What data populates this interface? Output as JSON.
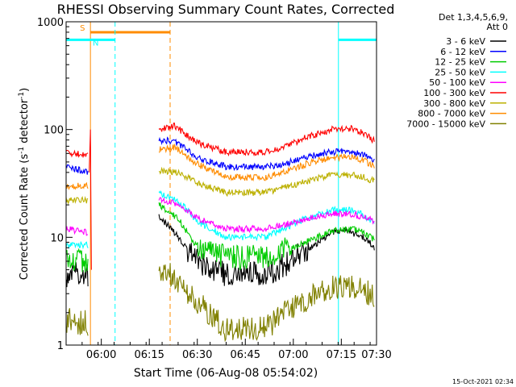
{
  "chart_data": {
    "type": "line",
    "title": "RHESSI Observing Summary Count Rates, Corrected",
    "xlabel": "Start Time (06-Aug-08 05:54:02)",
    "ylabel_main": "Corrected Count Rate (s",
    "ylabel_sup1": "-1",
    "ylabel_mid": " detector",
    "ylabel_sup2": "-1",
    "ylabel_end": ")",
    "y_scale": "log",
    "ylim": [
      1,
      1000
    ],
    "xlim_minutes": [
      -5,
      92
    ],
    "x_ticks": [
      {
        "m": 6,
        "label": "06:00"
      },
      {
        "m": 21,
        "label": "06:15"
      },
      {
        "m": 36,
        "label": "06:30"
      },
      {
        "m": 51,
        "label": "06:45"
      },
      {
        "m": 66,
        "label": "07:00"
      },
      {
        "m": 81,
        "label": "07:15"
      },
      {
        "m": 96,
        "label": "07:30"
      }
    ],
    "y_ticks": [
      {
        "v": 1,
        "label": "1"
      },
      {
        "v": 10,
        "label": "10"
      },
      {
        "v": 100,
        "label": "100"
      },
      {
        "v": 1000,
        "label": "1000"
      }
    ],
    "legend_header": [
      "Det 1,3,4,5,6,9,",
      "Att 0"
    ],
    "legend_placement": "right",
    "series": [
      {
        "name": "3 - 6 keV",
        "color": "#000000",
        "points": [
          [
            -5,
            4.5
          ],
          [
            2,
            4.5
          ],
          [
            23.5,
            null
          ],
          [
            24,
            16
          ],
          [
            30,
            10
          ],
          [
            36,
            6
          ],
          [
            45,
            4.5
          ],
          [
            57,
            4.5
          ],
          [
            63,
            5.5
          ],
          [
            70,
            7.5
          ],
          [
            78,
            11
          ],
          [
            82,
            11.5
          ],
          [
            88,
            10
          ],
          [
            91.5,
            8
          ]
        ]
      },
      {
        "name": "6 - 12 keV",
        "color": "#0000ff",
        "points": [
          [
            -5,
            45
          ],
          [
            2,
            40
          ],
          [
            23.5,
            null
          ],
          [
            24,
            80
          ],
          [
            29,
            78
          ],
          [
            36,
            55
          ],
          [
            45,
            45
          ],
          [
            57,
            45
          ],
          [
            63,
            48
          ],
          [
            70,
            55
          ],
          [
            78,
            62
          ],
          [
            84,
            62
          ],
          [
            88,
            58
          ],
          [
            91.5,
            52
          ]
        ]
      },
      {
        "name": "12 - 25 keV",
        "color": "#00cc00",
        "points": [
          [
            -5,
            6.5
          ],
          [
            2,
            6
          ],
          [
            23.5,
            null
          ],
          [
            24,
            20
          ],
          [
            30,
            15
          ],
          [
            36,
            8
          ],
          [
            45,
            6.5
          ],
          [
            57,
            6.5
          ],
          [
            63,
            7.5
          ],
          [
            70,
            9
          ],
          [
            78,
            11.5
          ],
          [
            84,
            12
          ],
          [
            88,
            11
          ],
          [
            91.5,
            9.5
          ]
        ]
      },
      {
        "name": "25 - 50 keV",
        "color": "#00ffff",
        "points": [
          [
            -5,
            8.5
          ],
          [
            2,
            8.5
          ],
          [
            23.5,
            null
          ],
          [
            24,
            26
          ],
          [
            30,
            22
          ],
          [
            36,
            14
          ],
          [
            45,
            10
          ],
          [
            57,
            10
          ],
          [
            63,
            12
          ],
          [
            70,
            15
          ],
          [
            78,
            18
          ],
          [
            84,
            18
          ],
          [
            88,
            16
          ],
          [
            91.5,
            13.5
          ]
        ]
      },
      {
        "name": "50 - 100 keV",
        "color": "#ff00ff",
        "points": [
          [
            -5,
            12
          ],
          [
            2,
            11
          ],
          [
            23.5,
            null
          ],
          [
            24,
            23
          ],
          [
            30,
            20
          ],
          [
            36,
            15
          ],
          [
            45,
            12
          ],
          [
            57,
            12
          ],
          [
            63,
            13
          ],
          [
            70,
            15
          ],
          [
            78,
            16.5
          ],
          [
            84,
            16.5
          ],
          [
            88,
            15.5
          ],
          [
            91.5,
            14
          ]
        ]
      },
      {
        "name": "100 - 300 keV",
        "color": "#ff0000",
        "points": [
          [
            -5,
            60
          ],
          [
            2,
            60
          ],
          [
            23.5,
            null
          ],
          [
            24,
            100
          ],
          [
            29,
            108
          ],
          [
            36,
            75
          ],
          [
            45,
            62
          ],
          [
            57,
            62
          ],
          [
            63,
            68
          ],
          [
            70,
            85
          ],
          [
            78,
            100
          ],
          [
            84,
            102
          ],
          [
            88,
            92
          ],
          [
            91.5,
            78
          ]
        ]
      },
      {
        "name": "300 - 800 keV",
        "color": "#ffff00",
        "plot_color": "#bcb000",
        "points": [
          [
            -5,
            22
          ],
          [
            2,
            22
          ],
          [
            23.5,
            null
          ],
          [
            24,
            42
          ],
          [
            30,
            40
          ],
          [
            36,
            32
          ],
          [
            45,
            26
          ],
          [
            57,
            26
          ],
          [
            63,
            29
          ],
          [
            70,
            33
          ],
          [
            78,
            38
          ],
          [
            84,
            38
          ],
          [
            88,
            36
          ],
          [
            91.5,
            33
          ]
        ]
      },
      {
        "name": "800 - 7000 keV",
        "color": "#ff8c00",
        "points": [
          [
            -5,
            30
          ],
          [
            2,
            30
          ],
          [
            23.5,
            null
          ],
          [
            24,
            65
          ],
          [
            29,
            68
          ],
          [
            36,
            48
          ],
          [
            45,
            36
          ],
          [
            57,
            36
          ],
          [
            63,
            40
          ],
          [
            70,
            48
          ],
          [
            78,
            55
          ],
          [
            84,
            56
          ],
          [
            88,
            52
          ],
          [
            91.5,
            45
          ]
        ]
      },
      {
        "name": "7000 - 15000 keV",
        "color": "#808000",
        "points": [
          [
            -5,
            1.7
          ],
          [
            2,
            1.6
          ],
          [
            23.5,
            null
          ],
          [
            24,
            5
          ],
          [
            30,
            4
          ],
          [
            36,
            2.5
          ],
          [
            45,
            1.4
          ],
          [
            57,
            1.4
          ],
          [
            63,
            2
          ],
          [
            70,
            2.6
          ],
          [
            78,
            3.4
          ],
          [
            84,
            3.6
          ],
          [
            88,
            3.3
          ],
          [
            91.5,
            2.8
          ]
        ]
      }
    ],
    "intervals": [
      {
        "label": "S",
        "color": "#ff8c00",
        "start": 2.6,
        "end": 27.5,
        "level": 800
      },
      {
        "label": "N",
        "color": "#00ffff",
        "start": -5,
        "end": 10.3,
        "level": 680
      },
      {
        "label": "",
        "color": "#00ffff",
        "start": 80.1,
        "end": 94.4,
        "level": 680
      }
    ],
    "footer_date": "15-Oct-2021 02:34"
  }
}
